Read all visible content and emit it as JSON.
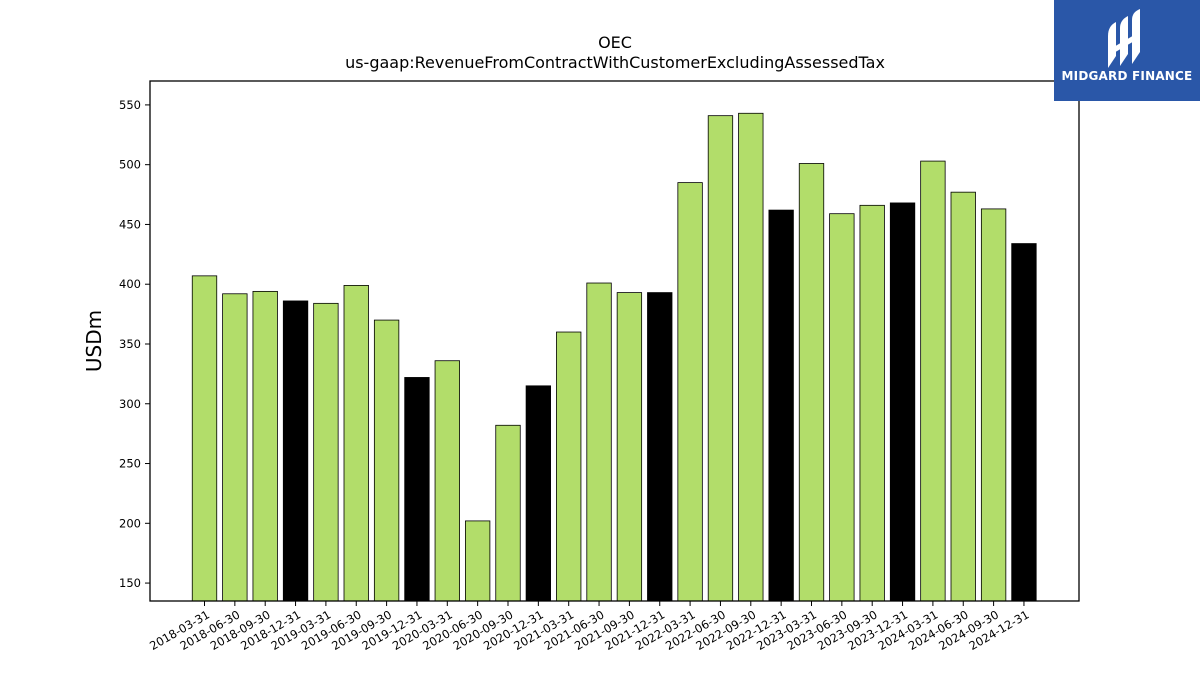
{
  "colors": {
    "default_bar": "#b2dd6a",
    "highlight_bar": "#000000",
    "logo_bg": "#2a57a8"
  },
  "logo": {
    "text": "MIDGARD FINANCE",
    "icon": "midgard-mark-icon"
  },
  "chart_data": {
    "type": "bar",
    "title": "OEC",
    "subtitle": "us-gaap:RevenueFromContractWithCustomerExcludingAssessedTax",
    "xlabel": "",
    "ylabel": "USDm",
    "ylim": [
      135,
      570
    ],
    "yticks": [
      150,
      200,
      250,
      300,
      350,
      400,
      450,
      500,
      550
    ],
    "grid": false,
    "categories": [
      "2018-03-31",
      "2018-06-30",
      "2018-09-30",
      "2018-12-31",
      "2019-03-31",
      "2019-06-30",
      "2019-09-30",
      "2019-12-31",
      "2020-03-31",
      "2020-06-30",
      "2020-09-30",
      "2020-12-31",
      "2021-03-31",
      "2021-06-30",
      "2021-09-30",
      "2021-12-31",
      "2022-03-31",
      "2022-06-30",
      "2022-09-30",
      "2022-12-31",
      "2023-03-31",
      "2023-06-30",
      "2023-09-30",
      "2023-12-31",
      "2024-03-31",
      "2024-06-30",
      "2024-09-30",
      "2024-12-31"
    ],
    "values": [
      407,
      392,
      394,
      386,
      384,
      399,
      370,
      322,
      336,
      202,
      282,
      315,
      360,
      401,
      393,
      393,
      485,
      541,
      543,
      462,
      501,
      459,
      466,
      468,
      503,
      477,
      463,
      434
    ],
    "highlight": [
      false,
      false,
      false,
      true,
      false,
      false,
      false,
      true,
      false,
      false,
      false,
      true,
      false,
      false,
      false,
      true,
      false,
      false,
      false,
      true,
      false,
      false,
      false,
      true,
      false,
      false,
      false,
      true
    ]
  }
}
